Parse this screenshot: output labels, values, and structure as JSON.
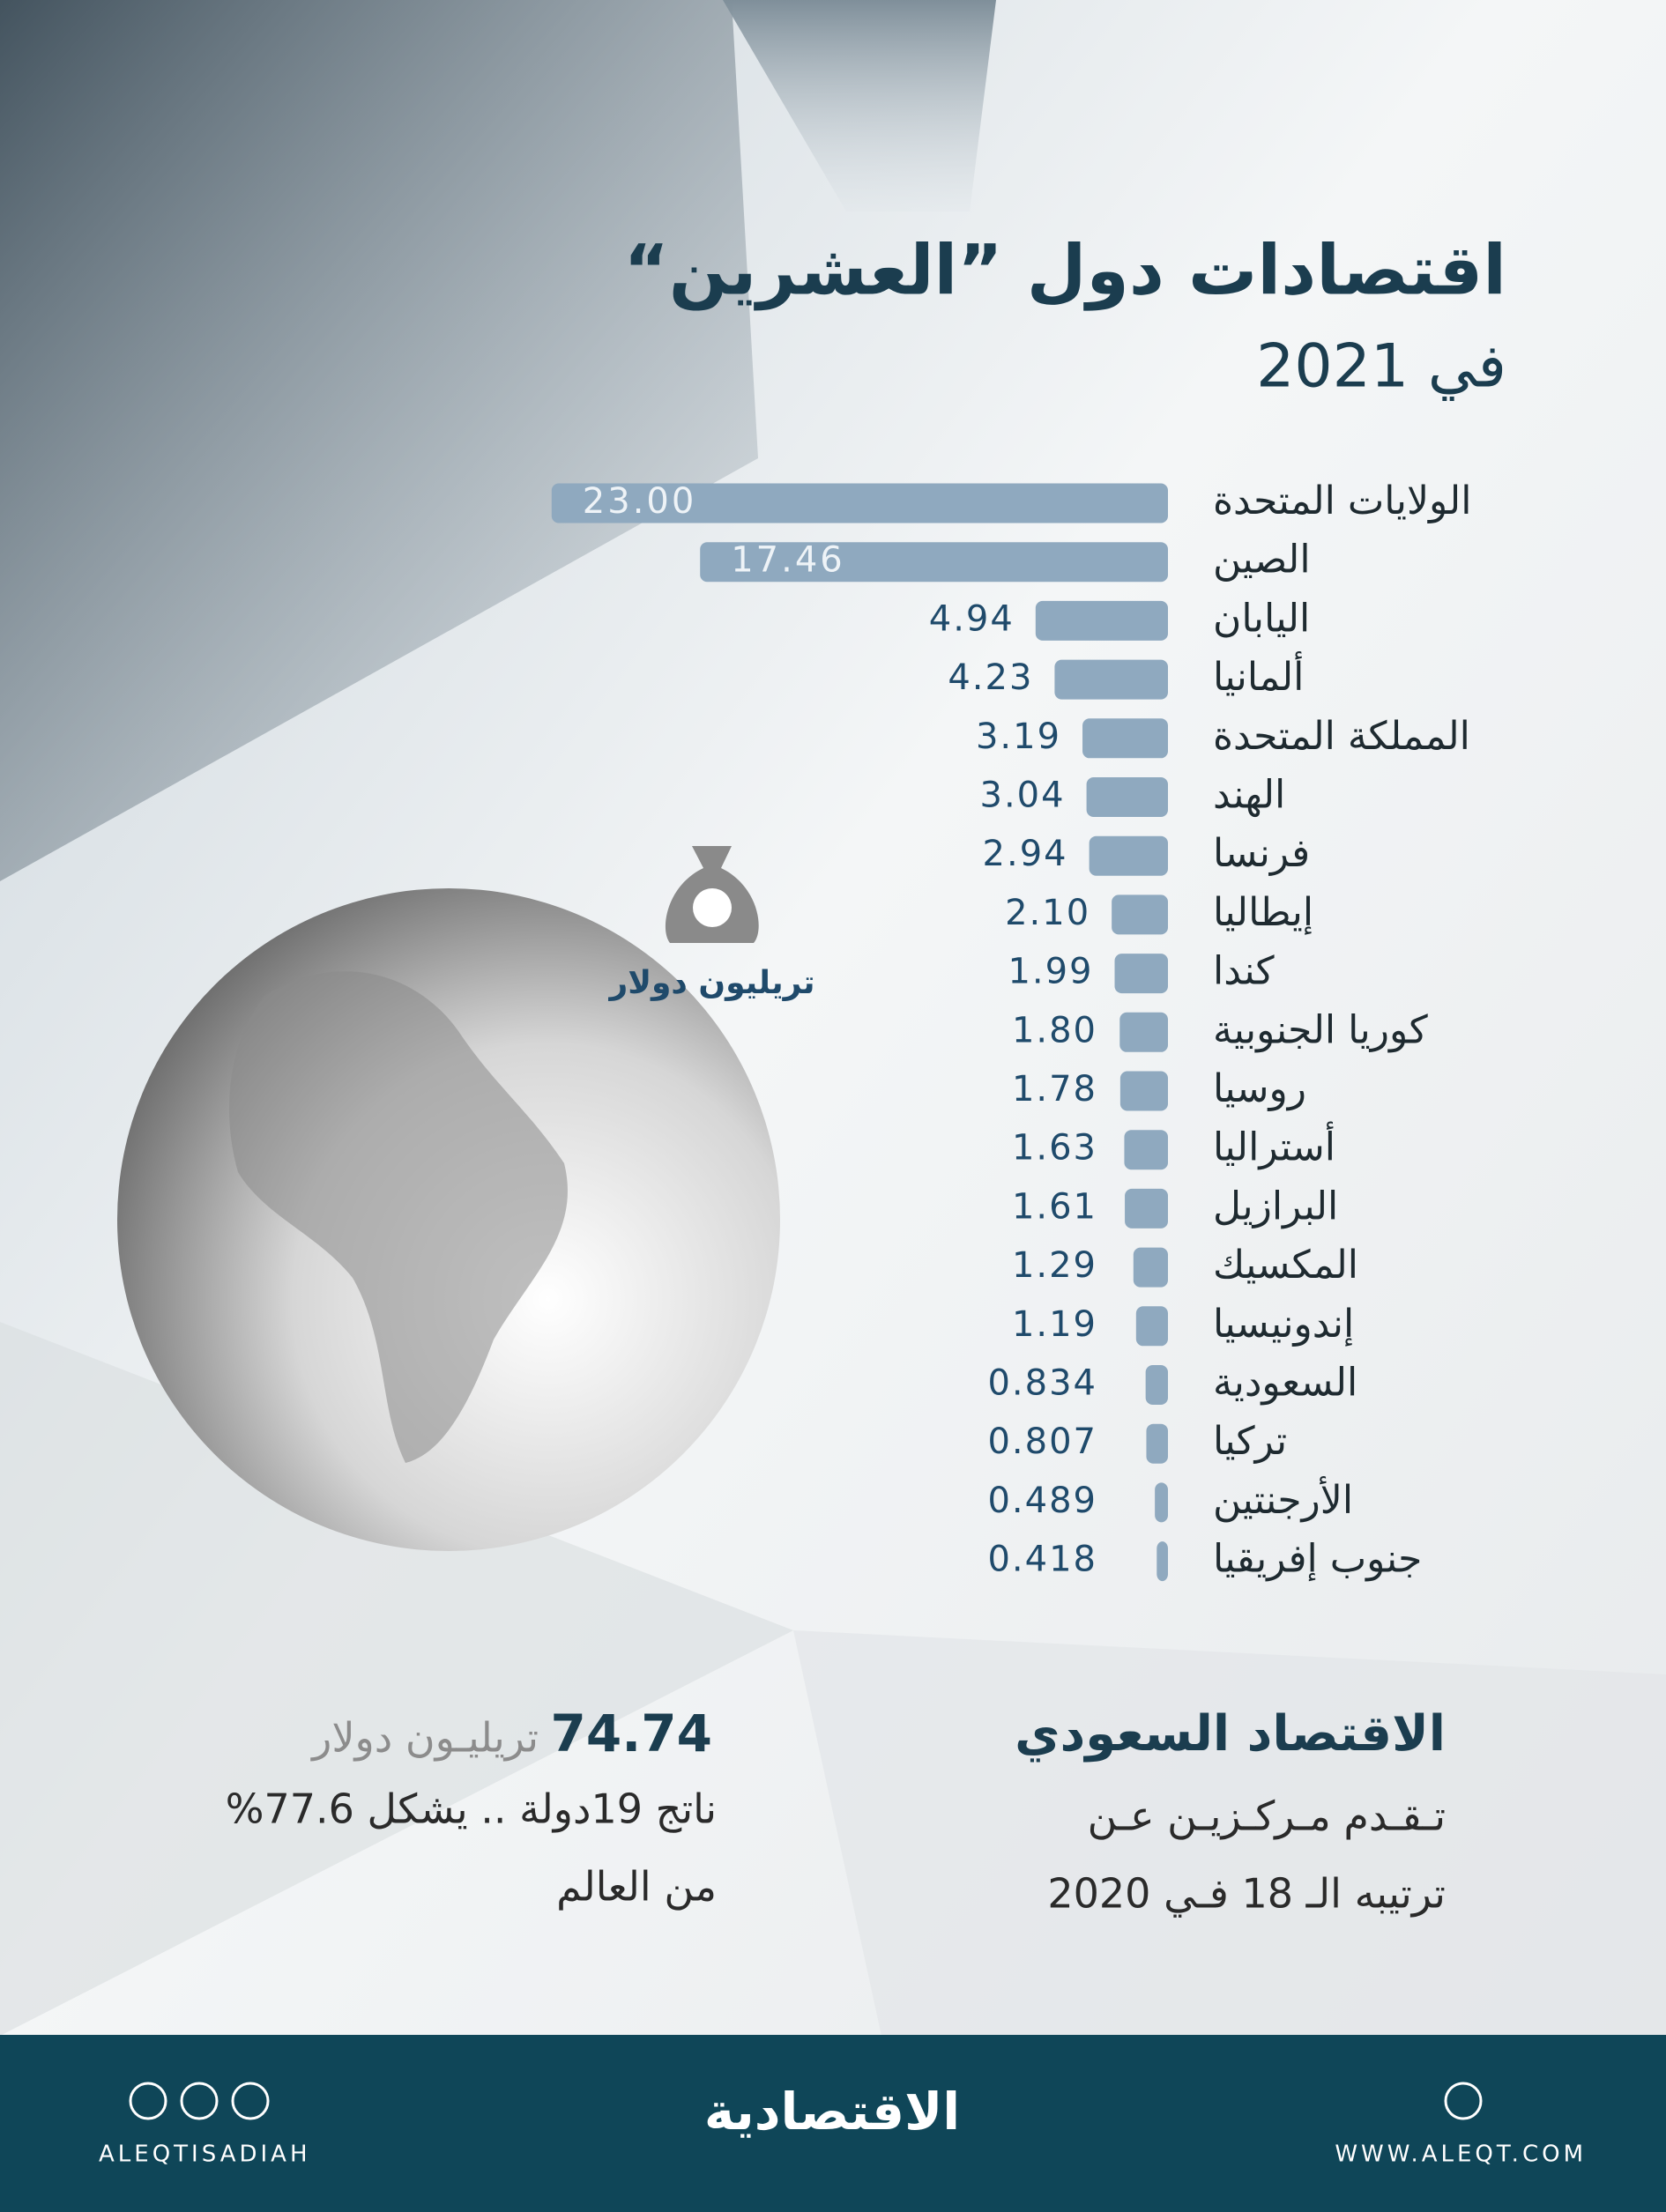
{
  "chart_data": {
    "type": "bar",
    "title": "اقتصادات دول ”العشرين“",
    "subtitle": "في 2021",
    "unit": "تريليون دولار",
    "categories": [
      "الولايات المتحدة",
      "الصين",
      "اليابان",
      "ألمانيا",
      "المملكة المتحدة",
      "الهند",
      "فرنسا",
      "إيطاليا",
      "كندا",
      "كوريا الجنوبية",
      "روسيا",
      "أستراليا",
      "البرازيل",
      "المكسيك",
      "إندونيسيا",
      "السعودية",
      "تركيا",
      "الأرجنتين",
      "جنوب إفريقيا"
    ],
    "values": [
      23,
      17.46,
      4.94,
      4.23,
      3.19,
      3.04,
      2.94,
      2.1,
      1.99,
      1.8,
      1.78,
      1.63,
      1.61,
      1.29,
      1.19,
      0.834,
      0.807,
      0.489,
      0.418
    ],
    "value_labels": [
      "23.00",
      "17.46",
      "4.94",
      "4.23",
      "3.19",
      "3.04",
      "2.94",
      "2.10",
      "1.99",
      "1.80",
      "1.78",
      "1.63",
      "1.61",
      "1.29",
      "1.19",
      "0.834",
      "0.807",
      "0.489",
      "0.418"
    ],
    "color": "#8fa9bf"
  },
  "summary": {
    "total": "74.74",
    "unit": "تريليـون دولار",
    "line1": "ناتج 19دولة .. يشكل 77.6%",
    "line2": "من العالم"
  },
  "saudi": {
    "title": "الاقتصاد السعودي",
    "line1": "تـقـدم مـركـزيـن عـن",
    "line2": "ترتيبه الـ 18 فـي 2020"
  },
  "footer": {
    "handle": "ALEQTISADIAH",
    "logo": "الاقتصادية",
    "website": "WWW.ALEQT.COM"
  }
}
